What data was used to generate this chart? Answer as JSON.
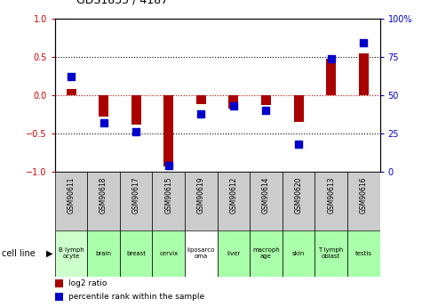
{
  "title": "GDS1835 / 4187",
  "samples": [
    "GSM90611",
    "GSM90618",
    "GSM90617",
    "GSM90615",
    "GSM90619",
    "GSM90612",
    "GSM90614",
    "GSM90620",
    "GSM90613",
    "GSM90616"
  ],
  "cell_lines": [
    "B lymph\nocyte",
    "brain",
    "breast",
    "cervix",
    "liposarco\noma",
    "liver",
    "macroph\nage",
    "skin",
    "T lymph\noblast",
    "testis"
  ],
  "cell_bg": [
    "#ccffcc",
    "#aaffaa",
    "#aaffaa",
    "#aaffaa",
    "#ffffff",
    "#aaffaa",
    "#aaffaa",
    "#aaffaa",
    "#aaffaa",
    "#aaffaa"
  ],
  "log2_ratio": [
    0.08,
    -0.28,
    -0.38,
    -0.93,
    -0.12,
    -0.18,
    -0.13,
    -0.35,
    0.47,
    0.55
  ],
  "percentile_rank": [
    62,
    32,
    26,
    4,
    38,
    43,
    40,
    18,
    74,
    84
  ],
  "ylim_left": [
    -1,
    1
  ],
  "ylim_right": [
    0,
    100
  ],
  "yticks_left": [
    -1,
    -0.5,
    0,
    0.5,
    1
  ],
  "yticks_right": [
    0,
    25,
    50,
    75,
    100
  ],
  "bar_color": "#aa0000",
  "dot_color": "#0000cc",
  "zero_line_color": "#cc0000",
  "grid_color": "#000000",
  "bg_color": "#ffffff",
  "sample_bg": "#cccccc",
  "bar_width": 0.3,
  "dot_size": 30,
  "left_axis_color": "#cc0000",
  "right_axis_color": "#0000cc"
}
